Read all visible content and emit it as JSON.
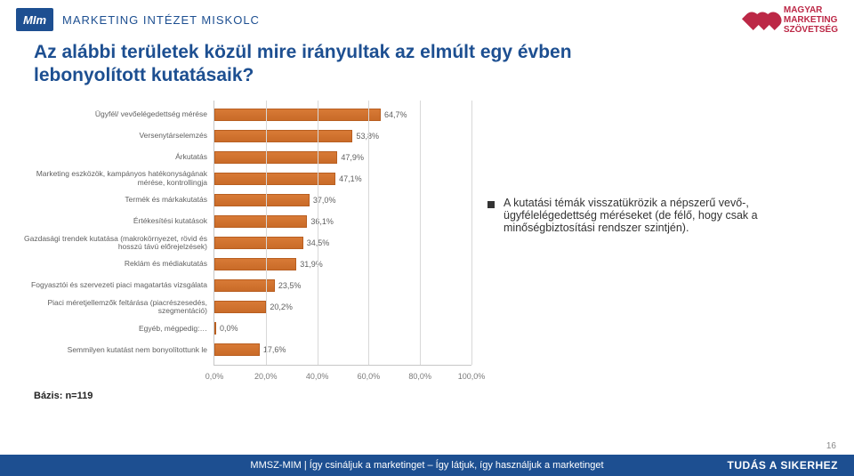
{
  "header": {
    "left_logo_text": "MIm",
    "left_brand": "MARKETING INTÉZET MISKOLC",
    "right_line1": "MAGYAR",
    "right_line2": "MARKETING",
    "right_line3": "SZÖVETSÉG"
  },
  "title": {
    "line1": "Az alábbi területek közül mire irányultak az elmúlt egy évben",
    "line2": "lebonyolított kutatásaik?"
  },
  "chart": {
    "type": "bar-horizontal",
    "bar_color": "#d87a36",
    "bar_border": "#b85e20",
    "grid_color": "#d8d8d8",
    "background": "#ffffff",
    "xlim_max": 100,
    "xticks": [
      0,
      20,
      40,
      60,
      80,
      100
    ],
    "xtick_labels": [
      "0,0%",
      "20,0%",
      "40,0%",
      "60,0%",
      "80,0%",
      "100,0%"
    ],
    "label_fontsize": 8.5,
    "value_fontsize": 9,
    "items": [
      {
        "label": "Ügyfél/ vevőelégedettség mérése",
        "value": 64.7,
        "value_label": "64,7%"
      },
      {
        "label": "Versenytárselemzés",
        "value": 53.8,
        "value_label": "53,8%"
      },
      {
        "label": "Árkutatás",
        "value": 47.9,
        "value_label": "47,9%"
      },
      {
        "label": "Marketing eszközök, kampányos hatékonyságának mérése, kontrollingja",
        "value": 47.1,
        "value_label": "47,1%"
      },
      {
        "label": "Termék és márkakutatás",
        "value": 37.0,
        "value_label": "37,0%"
      },
      {
        "label": "Értékesítési kutatások",
        "value": 36.1,
        "value_label": "36,1%"
      },
      {
        "label": "Gazdasági trendek kutatása (makrokörnyezet, rövid és hosszú távú előrejelzések)",
        "value": 34.5,
        "value_label": "34,5%"
      },
      {
        "label": "Reklám és médiakutatás",
        "value": 31.9,
        "value_label": "31,9%"
      },
      {
        "label": "Fogyasztói és szervezeti piaci magatartás vizsgálata",
        "value": 23.5,
        "value_label": "23,5%"
      },
      {
        "label": "Piaci méretjellemzők feltárása (piacrészesedés, szegmentáció)",
        "value": 20.2,
        "value_label": "20,2%"
      },
      {
        "label": "Egyéb, mégpedig:…",
        "value": 0.0,
        "value_label": "0,0%"
      },
      {
        "label": "Semmilyen kutatást nem bonyolítottunk le",
        "value": 17.6,
        "value_label": "17,6%"
      }
    ]
  },
  "note": "A kutatási témák visszatükrözik a népszerű vevő-, ügyfélelégedettség méréseket (de félő, hogy csak a minőségbiztosítási rendszer szintjén).",
  "base_label": "Bázis: n=119",
  "footer": {
    "center": "MMSZ-MIM |  Így csináljuk a marketinget – Így látjuk, így használjuk a marketinget",
    "right": "TUDÁS A SIKERHEZ"
  },
  "page_number": "16"
}
